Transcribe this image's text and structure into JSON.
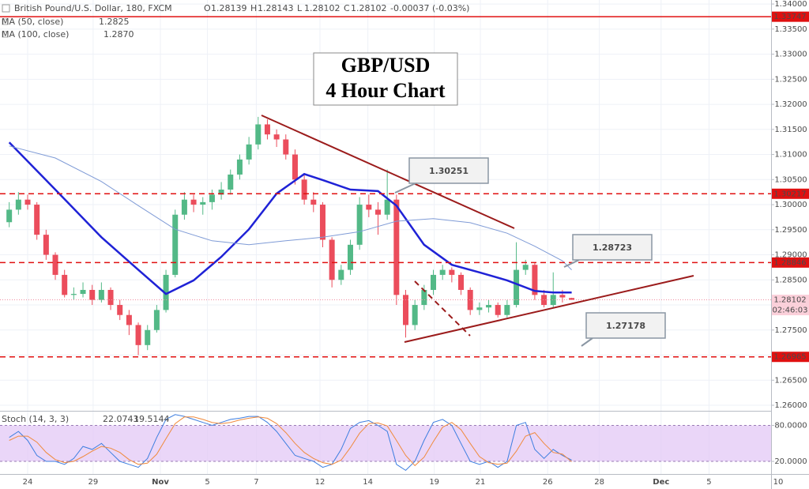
{
  "header": {
    "symbol": "British Pound/U.S. Dollar, 180, FXCM",
    "ohlc": [
      [
        "O",
        "1.28139"
      ],
      [
        "H",
        "1.28143"
      ],
      [
        "L",
        "1.28102"
      ],
      [
        "C",
        "1.28102"
      ]
    ],
    "change": "-0.00037 (-0.03%)"
  },
  "chart_data": [
    {
      "type": "candlestick",
      "title_lines": [
        "GBP/USD",
        "4 Hour Chart"
      ],
      "up_color": "#53b987",
      "down_color": "#eb4d5c",
      "candles": [
        [
          1.2965,
          1.3005,
          1.2955,
          1.299
        ],
        [
          1.299,
          1.3025,
          1.298,
          1.301
        ],
        [
          1.301,
          1.302,
          1.299,
          1.3
        ],
        [
          1.3,
          1.3005,
          1.293,
          1.294
        ],
        [
          1.294,
          1.295,
          1.289,
          1.29
        ],
        [
          1.29,
          1.2905,
          1.285,
          1.286
        ],
        [
          1.286,
          1.287,
          1.2815,
          1.282
        ],
        [
          1.282,
          1.2835,
          1.281,
          1.2822
        ],
        [
          1.2822,
          1.2845,
          1.2815,
          1.283
        ],
        [
          1.283,
          1.284,
          1.28,
          1.281
        ],
        [
          1.281,
          1.2845,
          1.2805,
          1.283
        ],
        [
          1.283,
          1.2835,
          1.279,
          1.28
        ],
        [
          1.28,
          1.281,
          1.277,
          1.278
        ],
        [
          1.278,
          1.279,
          1.274,
          1.276
        ],
        [
          1.276,
          1.2765,
          1.27,
          1.272
        ],
        [
          1.272,
          1.276,
          1.271,
          1.275
        ],
        [
          1.275,
          1.28,
          1.2745,
          1.279
        ],
        [
          1.279,
          1.287,
          1.2785,
          1.286
        ],
        [
          1.286,
          1.299,
          1.2855,
          1.298
        ],
        [
          1.298,
          1.3025,
          1.297,
          1.301
        ],
        [
          1.301,
          1.302,
          1.2985,
          1.3
        ],
        [
          1.3,
          1.3015,
          1.298,
          1.3005
        ],
        [
          1.3005,
          1.303,
          1.299,
          1.302
        ],
        [
          1.302,
          1.3045,
          1.301,
          1.303
        ],
        [
          1.303,
          1.307,
          1.302,
          1.306
        ],
        [
          1.306,
          1.31,
          1.305,
          1.309
        ],
        [
          1.309,
          1.3135,
          1.308,
          1.312
        ],
        [
          1.312,
          1.3175,
          1.311,
          1.316
        ],
        [
          1.316,
          1.317,
          1.313,
          1.314
        ],
        [
          1.314,
          1.315,
          1.3115,
          1.313
        ],
        [
          1.313,
          1.314,
          1.309,
          1.31
        ],
        [
          1.31,
          1.311,
          1.304,
          1.305
        ],
        [
          1.305,
          1.306,
          1.3,
          1.301
        ],
        [
          1.301,
          1.3025,
          1.2985,
          1.3
        ],
        [
          1.3,
          1.3005,
          1.2915,
          1.293
        ],
        [
          1.293,
          1.2935,
          1.2835,
          1.285
        ],
        [
          1.285,
          1.288,
          1.284,
          1.287
        ],
        [
          1.287,
          1.293,
          1.286,
          1.292
        ],
        [
          1.292,
          1.3015,
          1.291,
          1.3
        ],
        [
          1.3,
          1.302,
          1.2975,
          1.299
        ],
        [
          1.299,
          1.3005,
          1.294,
          1.298
        ],
        [
          1.298,
          1.307,
          1.297,
          1.301
        ],
        [
          1.301,
          1.302,
          1.28,
          1.282
        ],
        [
          1.282,
          1.283,
          1.2735,
          1.276
        ],
        [
          1.276,
          1.281,
          1.275,
          1.28
        ],
        [
          1.28,
          1.284,
          1.279,
          1.283
        ],
        [
          1.283,
          1.287,
          1.282,
          1.286
        ],
        [
          1.286,
          1.288,
          1.285,
          1.287
        ],
        [
          1.287,
          1.2875,
          1.2845,
          1.286
        ],
        [
          1.286,
          1.2865,
          1.282,
          1.283
        ],
        [
          1.283,
          1.2835,
          1.278,
          1.279
        ],
        [
          1.279,
          1.2805,
          1.278,
          1.2795
        ],
        [
          1.2795,
          1.281,
          1.2785,
          1.28
        ],
        [
          1.28,
          1.2805,
          1.2775,
          1.278
        ],
        [
          1.278,
          1.281,
          1.2775,
          1.28
        ],
        [
          1.28,
          1.2925,
          1.2795,
          1.287
        ],
        [
          1.287,
          1.289,
          1.286,
          1.288
        ],
        [
          1.288,
          1.2885,
          1.281,
          1.282
        ],
        [
          1.282,
          1.283,
          1.2795,
          1.28
        ],
        [
          1.28,
          1.2865,
          1.2795,
          1.282
        ],
        [
          1.282,
          1.283,
          1.2805,
          1.2815
        ],
        [
          1.28139,
          1.28143,
          1.28102,
          1.28102
        ]
      ],
      "series": [
        {
          "name": "MA (50, close)",
          "legend_value": "1.2825",
          "color": "#1f22d6",
          "width": 2.5,
          "x": [
            0,
            5,
            10,
            14,
            17,
            20,
            23,
            26,
            29,
            32,
            34,
            37,
            40,
            42,
            45,
            48,
            51,
            54,
            57,
            59,
            61
          ],
          "values": [
            1.3124,
            1.303,
            1.2935,
            1.287,
            1.2822,
            1.2849,
            1.2896,
            1.2951,
            1.3022,
            1.3061,
            1.3049,
            1.303,
            1.3027,
            1.2998,
            1.292,
            1.288,
            1.2865,
            1.2849,
            1.2828,
            1.2825,
            1.2825
          ]
        },
        {
          "name": "MA (100, close)",
          "legend_value": "1.2870",
          "color": "#7f9bd6",
          "width": 1,
          "x": [
            0,
            5,
            10,
            14,
            18,
            22,
            26,
            30,
            34,
            38,
            42,
            46,
            50,
            54,
            57,
            60,
            61
          ],
          "values": [
            1.3117,
            1.3093,
            1.3046,
            1.2998,
            1.2951,
            1.2928,
            1.292,
            1.2928,
            1.2935,
            1.2946,
            1.2967,
            1.2972,
            1.2964,
            1.2943,
            1.2917,
            1.2888,
            1.287
          ]
        }
      ],
      "price_lines": [
        {
          "value": 1.33747,
          "style": "solid",
          "color": "#e01010"
        },
        {
          "value": 1.30217,
          "style": "dashed",
          "color": "#e01010"
        },
        {
          "value": 1.28846,
          "style": "dashed",
          "color": "#e01010"
        },
        {
          "value": 1.26965,
          "style": "dashed",
          "color": "#e01010"
        },
        {
          "value": 1.28102,
          "style": "dotted",
          "color": "#f08ca0"
        }
      ],
      "countdown": "02:46:03",
      "annotations": [
        "1.30251",
        "1.28723",
        "1.27178"
      ],
      "ylim": [
        1.2589,
        1.3408
      ],
      "yticks": [
        {
          "value": 1.26,
          "label": "1.26000"
        },
        {
          "value": 1.265,
          "label": "1.26500"
        },
        {
          "value": 1.27,
          "label": "1.27000"
        },
        {
          "value": 1.275,
          "label": "1.27500"
        },
        {
          "value": 1.28,
          "label": "1.28000"
        },
        {
          "value": 1.285,
          "label": "1.28500"
        },
        {
          "value": 1.29,
          "label": "1.29000"
        },
        {
          "value": 1.295,
          "label": "1.29500"
        },
        {
          "value": 1.3,
          "label": "1.30000"
        },
        {
          "value": 1.305,
          "label": "1.30500"
        },
        {
          "value": 1.31,
          "label": "1.31000"
        },
        {
          "value": 1.315,
          "label": "1.31500"
        },
        {
          "value": 1.32,
          "label": "1.32000"
        },
        {
          "value": 1.325,
          "label": "1.32500"
        },
        {
          "value": 1.33,
          "label": "1.33000"
        },
        {
          "value": 1.335,
          "label": "1.33500"
        },
        {
          "value": 1.34,
          "label": "1.34000"
        }
      ],
      "xlim": [
        -1,
        84
      ],
      "xticks": [
        {
          "value": 2,
          "label": "24"
        },
        {
          "value": 9.1,
          "label": "29"
        },
        {
          "value": 16.4,
          "label": "Nov"
        },
        {
          "value": 21.5,
          "label": "5"
        },
        {
          "value": 26.8,
          "label": "7"
        },
        {
          "value": 33.7,
          "label": "12"
        },
        {
          "value": 38.9,
          "label": "14"
        },
        {
          "value": 46.1,
          "label": "19"
        },
        {
          "value": 51.1,
          "label": "21"
        },
        {
          "value": 58.4,
          "label": "26"
        },
        {
          "value": 64,
          "label": "28"
        },
        {
          "value": 70.7,
          "label": "Dec"
        },
        {
          "value": 75.9,
          "label": "5"
        },
        {
          "value": 83.4,
          "label": "10"
        }
      ],
      "grid": true
    },
    {
      "type": "line",
      "name": "Stoch (14, 3, 3)",
      "band": [
        20,
        80
      ],
      "band_color": "#e3c8f5",
      "series": [
        {
          "legend_value": "22.0743",
          "color": "#3d7ee0",
          "values": [
            60,
            70,
            55,
            30,
            20,
            20,
            15,
            25,
            45,
            40,
            50,
            35,
            20,
            15,
            10,
            25,
            60,
            90,
            98,
            95,
            90,
            85,
            80,
            85,
            90,
            92,
            95,
            95,
            85,
            70,
            50,
            30,
            25,
            20,
            10,
            15,
            40,
            75,
            85,
            88,
            80,
            70,
            15,
            5,
            20,
            55,
            85,
            90,
            80,
            50,
            20,
            15,
            20,
            10,
            20,
            80,
            85,
            40,
            25,
            40,
            30,
            22.0743
          ]
        },
        {
          "legend_value": "19.5144",
          "color": "#f08a3c",
          "values": [
            55,
            62,
            62,
            52,
            35,
            23,
            18,
            20,
            28,
            37,
            45,
            42,
            35,
            23,
            15,
            17,
            32,
            58,
            83,
            94,
            94,
            90,
            85,
            83,
            85,
            89,
            92,
            94,
            92,
            83,
            68,
            50,
            35,
            25,
            18,
            15,
            22,
            43,
            67,
            83,
            84,
            79,
            55,
            30,
            13,
            27,
            53,
            77,
            85,
            73,
            50,
            28,
            18,
            15,
            17,
            37,
            62,
            68,
            50,
            35,
            32,
            19.5144
          ]
        }
      ],
      "ylim": [
        -1,
        103
      ],
      "yticks": [
        {
          "value": 80,
          "label": "80.0000"
        },
        {
          "value": 20,
          "label": "20.0000"
        }
      ]
    }
  ]
}
